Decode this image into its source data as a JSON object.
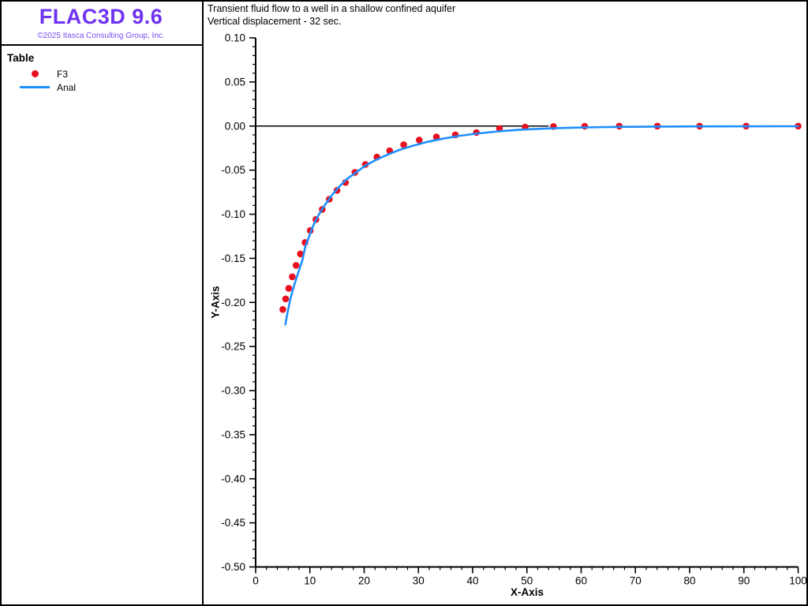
{
  "app": {
    "logo": "FLAC3D 9.6",
    "copyright": "©2025 Itasca Consulting Group, Inc."
  },
  "header": {
    "title": "Transient fluid flow to a well in a shallow confined aquifer",
    "subtitle": "Vertical displacement - 32 sec."
  },
  "legend": {
    "title": "Table",
    "items": [
      {
        "label": "F3",
        "marker": "red-dot-marker",
        "color": "#E8101E"
      },
      {
        "label": "Anal",
        "marker": "blue-line-marker",
        "color": "#1E8FFF"
      }
    ]
  },
  "colors": {
    "logo_purple": "#6F33F2",
    "copyright_purple": "#7A4BF0",
    "series_red": "#E8101E",
    "series_blue": "#1E8FFF",
    "axis_black": "#000000"
  },
  "chart_data": {
    "type": "scatter",
    "title": "Transient fluid flow to a well in a shallow confined aquifer",
    "subtitle": "Vertical displacement - 32 sec.",
    "xlabel": "X-Axis",
    "ylabel": "Y-Axis",
    "xlim": [
      0,
      100
    ],
    "ylim": [
      -0.5,
      0.1
    ],
    "grid": false,
    "legend_position": "left-sidebar",
    "x_major_ticks": [
      "0",
      "10",
      "20",
      "30",
      "40",
      "50",
      "60",
      "70",
      "80",
      "90",
      "100"
    ],
    "x_minor_step": 2,
    "y_major_ticks": [
      "0.10",
      "0.05",
      "0.00",
      "-0.05",
      "-0.10",
      "-0.15",
      "-0.20",
      "-0.25",
      "-0.30",
      "-0.35",
      "-0.40",
      "-0.45",
      "-0.50"
    ],
    "y_minor_step": 0.01,
    "zero_line": {
      "y": 0.0,
      "x_start": 0,
      "x_end": 54
    },
    "series": [
      {
        "name": "F3",
        "type": "scatter",
        "color": "#E8101E",
        "points": [
          [
            5.0,
            -0.208
          ],
          [
            5.52,
            -0.196
          ],
          [
            6.1,
            -0.184
          ],
          [
            6.75,
            -0.171
          ],
          [
            7.45,
            -0.158
          ],
          [
            8.24,
            -0.145
          ],
          [
            9.1,
            -0.132
          ],
          [
            10.06,
            -0.1185
          ],
          [
            11.11,
            -0.106
          ],
          [
            12.28,
            -0.0945
          ],
          [
            13.57,
            -0.083
          ],
          [
            14.99,
            -0.073
          ],
          [
            16.57,
            -0.064
          ],
          [
            18.3,
            -0.0525
          ],
          [
            20.23,
            -0.0435
          ],
          [
            22.35,
            -0.0352
          ],
          [
            24.7,
            -0.028
          ],
          [
            27.29,
            -0.0212
          ],
          [
            30.15,
            -0.0158
          ],
          [
            33.32,
            -0.0124
          ],
          [
            36.82,
            -0.01
          ],
          [
            40.68,
            -0.0074
          ],
          [
            44.95,
            -0.0028
          ],
          [
            49.67,
            -0.0012
          ],
          [
            54.89,
            -0.0005
          ],
          [
            60.65,
            -0.0002
          ],
          [
            67.02,
            0.0
          ],
          [
            74.05,
            0.0
          ],
          [
            81.83,
            0.0
          ],
          [
            90.42,
            0.0
          ],
          [
            100.0,
            0.0
          ]
        ]
      },
      {
        "name": "Anal",
        "type": "line",
        "color": "#1E8FFF",
        "points": [
          [
            5.48,
            -0.225
          ],
          [
            5.86,
            -0.212
          ],
          [
            6.35,
            -0.197
          ],
          [
            7.03,
            -0.182
          ],
          [
            7.81,
            -0.167
          ],
          [
            8.63,
            -0.152
          ],
          [
            9.12,
            -0.1374
          ],
          [
            9.84,
            -0.1254
          ],
          [
            10.57,
            -0.1135
          ],
          [
            11.53,
            -0.1015
          ],
          [
            12.75,
            -0.0896
          ],
          [
            13.96,
            -0.0791
          ],
          [
            15.41,
            -0.0687
          ],
          [
            16.87,
            -0.0598
          ],
          [
            18.57,
            -0.0523
          ],
          [
            20.25,
            -0.0448
          ],
          [
            22.2,
            -0.0383
          ],
          [
            24.38,
            -0.0323
          ],
          [
            26.57,
            -0.0269
          ],
          [
            28.98,
            -0.0224
          ],
          [
            31.66,
            -0.0179
          ],
          [
            34.56,
            -0.0143
          ],
          [
            37.71,
            -0.011
          ],
          [
            41.11,
            -0.0083
          ],
          [
            44.74,
            -0.006
          ],
          [
            48.62,
            -0.0042
          ],
          [
            52.5,
            -0.0031
          ],
          [
            56.5,
            -0.0022
          ],
          [
            61.0,
            -0.0015
          ],
          [
            67.0,
            -0.0009
          ],
          [
            74.0,
            -0.0006
          ],
          [
            82.0,
            -0.0004
          ],
          [
            91.0,
            -0.0003
          ],
          [
            100.0,
            -0.0002
          ]
        ]
      }
    ]
  }
}
